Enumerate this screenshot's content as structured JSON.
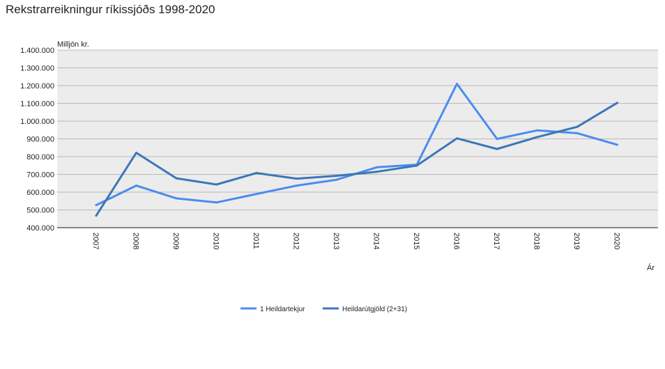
{
  "chart_data": {
    "type": "line",
    "title": "Rekstrarreikningur ríkissjóðs 1998-2020",
    "ylabel": "Milljón kr.",
    "xlabel": "Ár",
    "ylim": [
      400000,
      1400000
    ],
    "yticks": [
      400000,
      500000,
      600000,
      700000,
      800000,
      900000,
      1000000,
      1100000,
      1200000,
      1300000,
      1400000
    ],
    "ytick_labels": [
      "400.000",
      "500.000",
      "600.000",
      "700.000",
      "800.000",
      "900.000",
      "1.000.000",
      "1.100.000",
      "1.200.000",
      "1.300.000",
      "1.400.000"
    ],
    "x": [
      "2007",
      "2008",
      "2009",
      "2010",
      "2011",
      "2012",
      "2013",
      "2014",
      "2015",
      "2016",
      "2017",
      "2018",
      "2019",
      "2020"
    ],
    "grid": true,
    "legend_position": "bottom",
    "series": [
      {
        "name": "1 Heildartekjur",
        "color": "#4a8cf0",
        "values": [
          527000,
          637000,
          565000,
          542000,
          590000,
          637000,
          670000,
          740000,
          755000,
          1210000,
          900000,
          948000,
          932000,
          867000
        ]
      },
      {
        "name": "Heildarútgjöld (2+31)",
        "color": "#3a77b8",
        "values": [
          468000,
          822000,
          678000,
          643000,
          708000,
          676000,
          692000,
          715000,
          750000,
          903000,
          843000,
          910000,
          968000,
          1103000
        ]
      }
    ]
  }
}
